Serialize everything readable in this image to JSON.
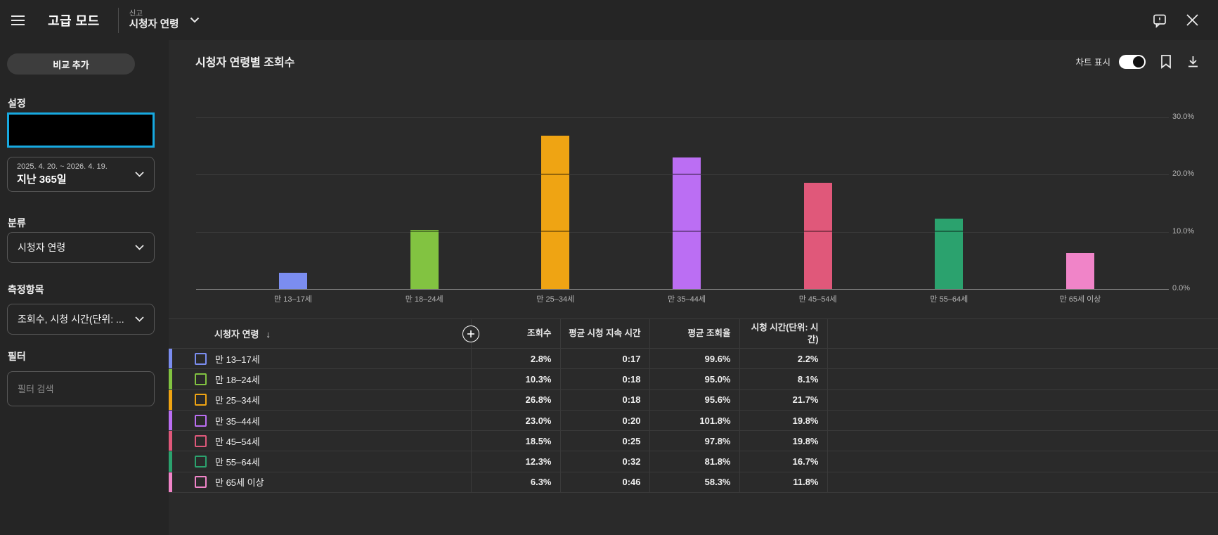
{
  "topbar": {
    "menu_title": "고급 모드",
    "report_label": "신고",
    "report_value": "시청자 연령"
  },
  "sidebar": {
    "compare_button": "비교 추가",
    "settings_label": "설정",
    "date_range": {
      "range": "2025. 4. 20. ~ 2026. 4. 19.",
      "preset": "지난 365일"
    },
    "dimension_label": "분류",
    "dimension_value": "시청자 연령",
    "metrics_label": "측정항목",
    "metrics_value": "조회수, 시청 시간(단위: ...",
    "filter_label": "필터",
    "filter_placeholder": "필터 검색"
  },
  "chart_header": {
    "title": "시청자 연령별 조회수",
    "toggle_label": "차트 표시",
    "toggle_on": true
  },
  "chart_data": {
    "type": "bar",
    "title": "시청자 연령별 조회수",
    "categories": [
      "만 13–17세",
      "만 18–24세",
      "만 25–34세",
      "만 35–44세",
      "만 45–54세",
      "만 55–64세",
      "만 65세 이상"
    ],
    "values": [
      2.8,
      10.3,
      26.8,
      23.0,
      18.5,
      12.3,
      6.3
    ],
    "value_unit": "%",
    "series_name": "조회수",
    "ylim": [
      0,
      30
    ],
    "yticks": [
      {
        "value": 0,
        "label": "0.0%"
      },
      {
        "value": 10,
        "label": "10.0%"
      },
      {
        "value": 20,
        "label": "20.0%"
      },
      {
        "value": 30,
        "label": "30.0%"
      }
    ],
    "ytick_side": "right",
    "grid": true,
    "bar_colors": [
      "#7B8DF0",
      "#82C341",
      "#EFA413",
      "#BB6EF3",
      "#E0587A",
      "#2BA26E",
      "#F084C8"
    ]
  },
  "table": {
    "columns": [
      "시청자 연령",
      "조회수",
      "평균 시청 지속 시간",
      "평균 조회율",
      "시청 시간(단위: 시간)"
    ],
    "sort_icon": "↓",
    "rows": [
      {
        "label": "만 13–17세",
        "color": "#7B8DF0",
        "values": [
          "2.8%",
          "0:17",
          "99.6%",
          "2.2%"
        ]
      },
      {
        "label": "만 18–24세",
        "color": "#82C341",
        "values": [
          "10.3%",
          "0:18",
          "95.0%",
          "8.1%"
        ]
      },
      {
        "label": "만 25–34세",
        "color": "#EFA413",
        "values": [
          "26.8%",
          "0:18",
          "95.6%",
          "21.7%"
        ]
      },
      {
        "label": "만 35–44세",
        "color": "#BB6EF3",
        "values": [
          "23.0%",
          "0:20",
          "101.8%",
          "19.8%"
        ]
      },
      {
        "label": "만 45–54세",
        "color": "#E0587A",
        "values": [
          "18.5%",
          "0:25",
          "97.8%",
          "19.8%"
        ]
      },
      {
        "label": "만 55–64세",
        "color": "#2BA26E",
        "values": [
          "12.3%",
          "0:32",
          "81.8%",
          "16.7%"
        ]
      },
      {
        "label": "만 65세 이상",
        "color": "#F084C8",
        "values": [
          "6.3%",
          "0:46",
          "58.3%",
          "11.8%"
        ]
      }
    ]
  },
  "colors": {
    "focus_border": "#17A9E0",
    "grid": "#3B3B3B",
    "axis": "#8F8F8F"
  }
}
